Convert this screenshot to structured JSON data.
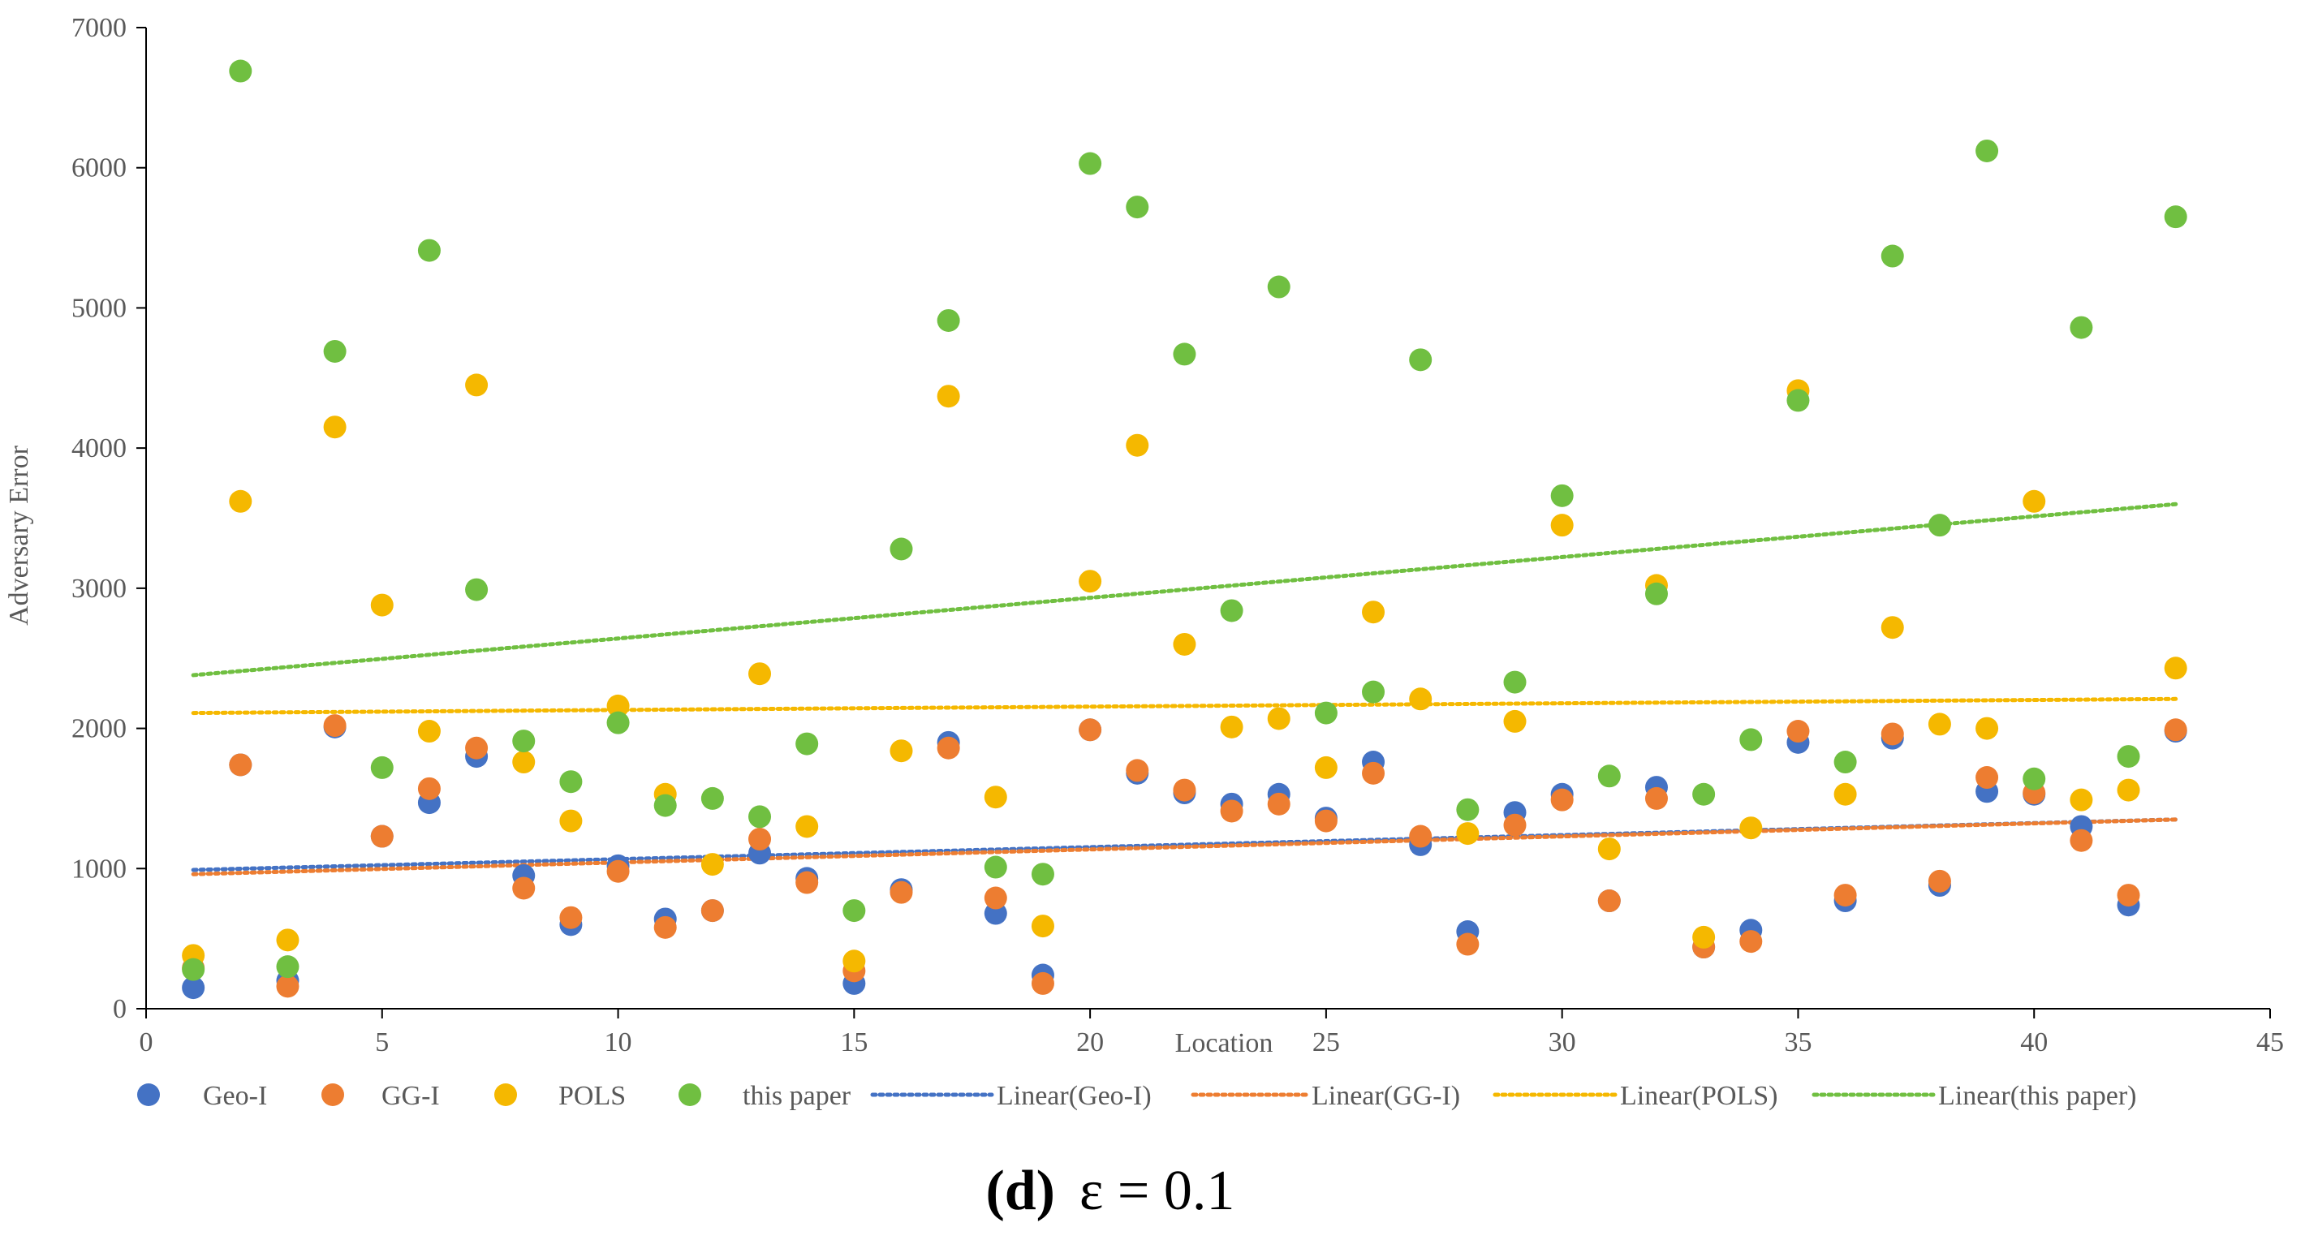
{
  "chart_data": {
    "type": "scatter",
    "xlabel": "Location",
    "ylabel": "Adversary Error",
    "xlim": [
      0,
      45
    ],
    "ylim": [
      0,
      7000
    ],
    "x_ticks": [
      0,
      5,
      10,
      15,
      20,
      25,
      30,
      35,
      40,
      45
    ],
    "y_ticks": [
      0,
      1000,
      2000,
      3000,
      4000,
      5000,
      6000,
      7000
    ],
    "x": [
      1,
      2,
      3,
      4,
      5,
      6,
      7,
      8,
      9,
      10,
      11,
      12,
      13,
      14,
      15,
      16,
      17,
      18,
      19,
      20,
      21,
      22,
      23,
      24,
      25,
      26,
      27,
      28,
      29,
      30,
      31,
      32,
      33,
      34,
      35,
      36,
      37,
      38,
      39,
      40,
      41,
      42,
      43
    ],
    "series": [
      {
        "name": "Geo-I",
        "color": "#4472c4",
        "values": [
          150,
          1740,
          200,
          2010,
          1230,
          1470,
          1800,
          950,
          600,
          1020,
          640,
          700,
          1110,
          930,
          180,
          850,
          1900,
          680,
          240,
          1990,
          1680,
          1540,
          1460,
          1530,
          1360,
          1760,
          1170,
          550,
          1400,
          1530,
          770,
          1580,
          440,
          560,
          1900,
          770,
          1930,
          880,
          1550,
          1530,
          1300,
          740,
          1980
        ]
      },
      {
        "name": "GG-I",
        "color": "#ed7d31",
        "values": [
          290,
          1740,
          160,
          2020,
          1230,
          1570,
          1860,
          860,
          650,
          980,
          580,
          700,
          1210,
          900,
          270,
          830,
          1860,
          790,
          180,
          1990,
          1700,
          1560,
          1410,
          1460,
          1340,
          1680,
          1230,
          460,
          1310,
          1490,
          770,
          1500,
          440,
          480,
          1980,
          810,
          1960,
          910,
          1650,
          1540,
          1200,
          810,
          1990
        ]
      },
      {
        "name": "POLS",
        "color": "#f5b800",
        "values": [
          380,
          3620,
          490,
          4150,
          2880,
          1980,
          4450,
          1760,
          1340,
          2160,
          1530,
          1030,
          2390,
          1300,
          340,
          1840,
          4370,
          1510,
          590,
          3050,
          4020,
          2600,
          2010,
          2070,
          1720,
          2830,
          2210,
          1250,
          2050,
          3450,
          1140,
          3020,
          510,
          1290,
          4410,
          1530,
          2720,
          2030,
          2000,
          3620,
          1490,
          1560,
          2430
        ]
      },
      {
        "name": "this paper",
        "color": "#70bf41",
        "values": [
          280,
          6690,
          300,
          4690,
          1720,
          5410,
          2990,
          1910,
          1620,
          2040,
          1450,
          1500,
          1370,
          1890,
          700,
          3280,
          4910,
          1010,
          960,
          6030,
          5720,
          4670,
          2840,
          5150,
          2110,
          2260,
          4630,
          1420,
          2330,
          3660,
          1660,
          2960,
          1530,
          1920,
          4340,
          1760,
          5370,
          3450,
          6120,
          1640,
          4860,
          1800,
          5650
        ]
      }
    ],
    "trendlines": [
      {
        "name": "Linear(Geo-I)",
        "color": "#4472c4",
        "x": [
          1,
          43
        ],
        "y": [
          990,
          1350
        ]
      },
      {
        "name": "Linear(GG-I)",
        "color": "#ed7d31",
        "x": [
          1,
          43
        ],
        "y": [
          960,
          1350
        ]
      },
      {
        "name": "Linear(POLS)",
        "color": "#f5b800",
        "x": [
          1,
          43
        ],
        "y": [
          2110,
          2210
        ]
      },
      {
        "name": "Linear(this paper)",
        "color": "#70bf41",
        "x": [
          1,
          43
        ],
        "y": [
          2380,
          3600
        ]
      }
    ],
    "legend": [
      "Geo-I",
      "GG-I",
      "POLS",
      "this paper",
      "Linear(Geo-I)",
      "Linear(GG-I)",
      "Linear(POLS)",
      "Linear(this paper)"
    ],
    "legend_position": "bottom"
  },
  "caption": {
    "label": "(d)",
    "text": "ε = 0.1"
  }
}
